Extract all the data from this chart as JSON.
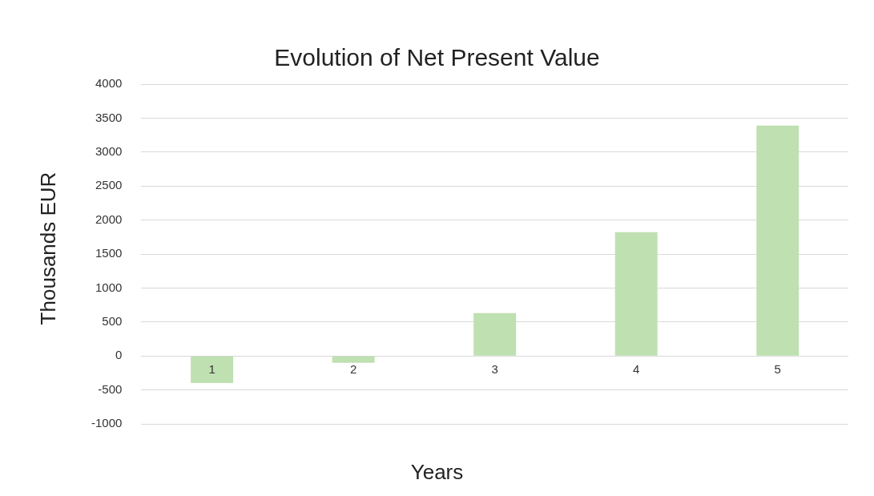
{
  "chart_data": {
    "type": "bar",
    "title": "Evolution of Net Present Value",
    "xlabel": "Years",
    "ylabel": "Thousands EUR",
    "categories": [
      "1",
      "2",
      "3",
      "4",
      "5"
    ],
    "values": [
      -400,
      -100,
      630,
      1820,
      3390
    ],
    "color": "#bfe0b0",
    "ylim": [
      -1000,
      4000
    ],
    "yticks": [
      -1000,
      -500,
      0,
      500,
      1000,
      1500,
      2000,
      2500,
      3000,
      3500,
      4000
    ],
    "grid": "y",
    "legend": false
  }
}
